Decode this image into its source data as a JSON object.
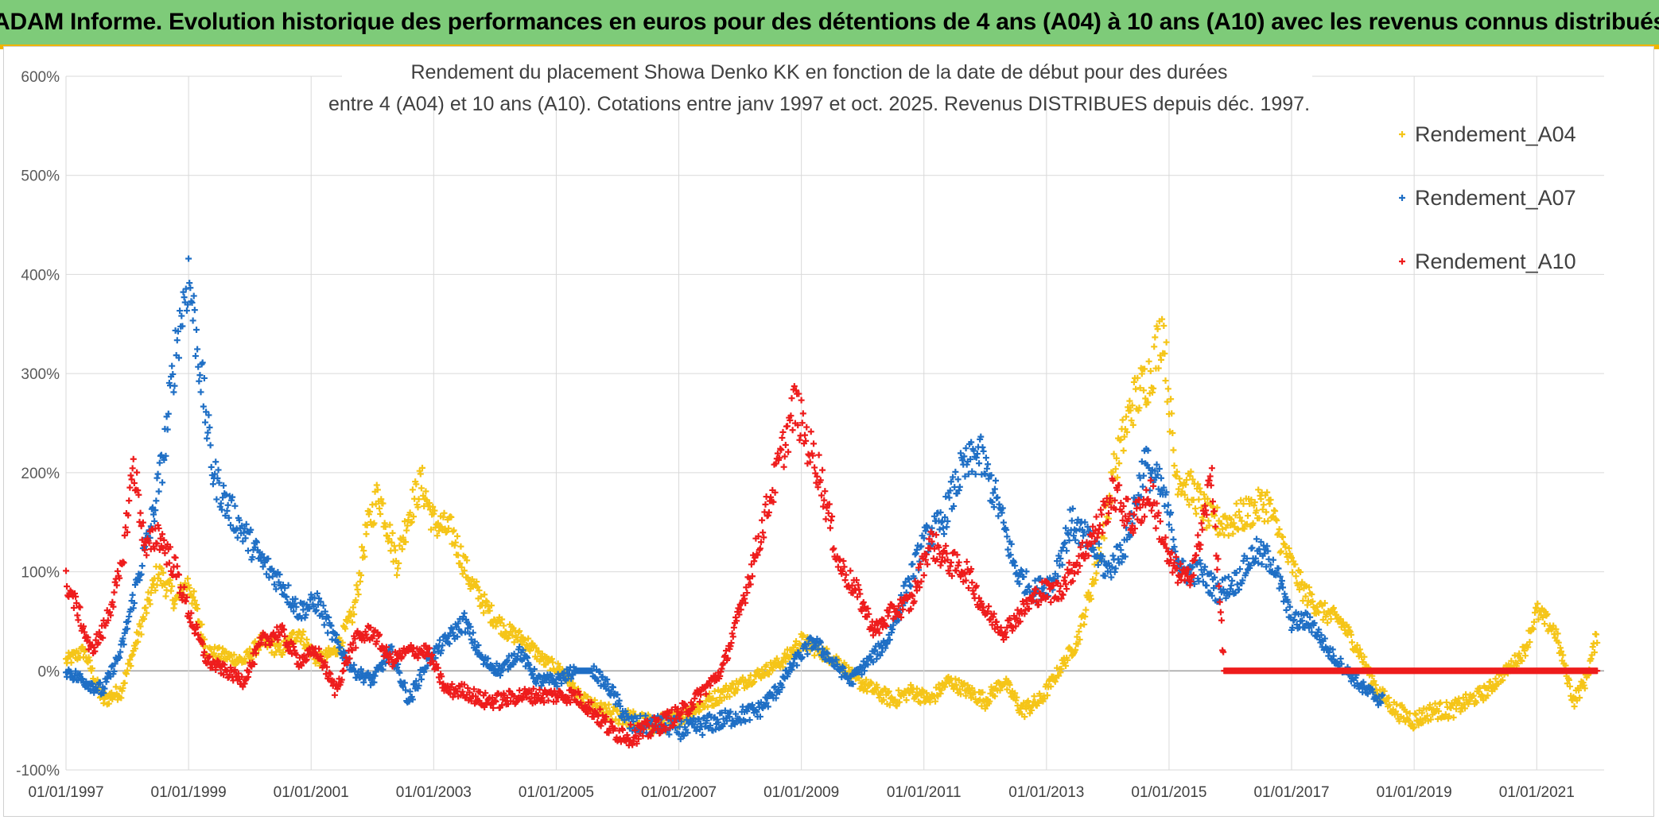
{
  "header": {
    "title": "ADAM Informe. Evolution historique des performances en euros pour des détentions de 4 ans (A04) à 10 ans (A10) avec les revenus connus distribués"
  },
  "chart_data": {
    "type": "scatter",
    "title_line1": "Rendement du placement Showa Denko KK en fonction de la date de début pour des durées",
    "title_line2": "entre 4 (A04) et 10 ans (A10). Cotations entre janv 1997 et oct. 2025. Revenus DISTRIBUES depuis déc. 1997.",
    "xlabel": "",
    "ylabel": "",
    "x_range": [
      1997.0,
      2022.1
    ],
    "ylim": [
      -100,
      600
    ],
    "y_ticks": [
      -100,
      0,
      100,
      200,
      300,
      400,
      500,
      600
    ],
    "y_tick_labels": [
      "-100%",
      "0%",
      "100%",
      "200%",
      "300%",
      "400%",
      "500%",
      "600%"
    ],
    "x_ticks": [
      1997,
      1999,
      2001,
      2003,
      2005,
      2007,
      2009,
      2011,
      2013,
      2015,
      2017,
      2019,
      2021
    ],
    "x_tick_labels": [
      "01/01/1997",
      "01/01/1999",
      "01/01/2001",
      "01/01/2003",
      "01/01/2005",
      "01/01/2007",
      "01/01/2009",
      "01/01/2011",
      "01/01/2013",
      "01/01/2015",
      "01/01/2017",
      "01/01/2019",
      "01/01/2021"
    ],
    "grid": true,
    "legend_position": "top-right",
    "series": [
      {
        "name": "Rendement_A04",
        "color": "#f5c518",
        "x": [
          1997.0,
          1997.3,
          1997.6,
          1997.9,
          1998.2,
          1998.5,
          1998.8,
          1999.0,
          1999.3,
          1999.6,
          1999.9,
          2000.2,
          2000.5,
          2000.8,
          2001.1,
          2001.4,
          2001.7,
          2001.9,
          2002.1,
          2002.4,
          2002.6,
          2002.8,
          2003.0,
          2003.3,
          2003.6,
          2003.9,
          2004.2,
          2004.5,
          2004.8,
          2005.1,
          2005.4,
          2005.7,
          2006.0,
          2006.3,
          2006.6,
          2006.9,
          2007.2,
          2007.5,
          2007.8,
          2008.1,
          2008.4,
          2008.7,
          2009.0,
          2009.3,
          2009.6,
          2009.9,
          2010.2,
          2010.5,
          2010.8,
          2011.1,
          2011.4,
          2011.7,
          2012.0,
          2012.3,
          2012.6,
          2012.9,
          2013.2,
          2013.5,
          2013.8,
          2014.1,
          2014.4,
          2014.7,
          2014.9,
          2015.1,
          2015.4,
          2015.7,
          2016.0,
          2016.3,
          2016.6,
          2016.9,
          2017.2,
          2017.5,
          2017.8,
          2018.1,
          2018.4,
          2018.7,
          2019.0,
          2019.3,
          2019.6,
          2019.9,
          2020.2,
          2020.5,
          2020.8,
          2021.0,
          2021.3,
          2021.6,
          2021.8,
          2022.0
        ],
        "values": [
          10,
          20,
          -30,
          -20,
          40,
          100,
          70,
          90,
          20,
          15,
          10,
          30,
          20,
          40,
          10,
          20,
          60,
          140,
          180,
          110,
          160,
          190,
          150,
          140,
          90,
          60,
          40,
          30,
          10,
          0,
          -30,
          -40,
          -45,
          -50,
          -55,
          -50,
          -40,
          -30,
          -20,
          -10,
          0,
          10,
          30,
          20,
          10,
          -10,
          -20,
          -30,
          -20,
          -30,
          -10,
          -20,
          -30,
          -10,
          -40,
          -30,
          0,
          30,
          100,
          200,
          270,
          300,
          350,
          200,
          180,
          150,
          150,
          160,
          170,
          120,
          80,
          60,
          50,
          20,
          -20,
          -40,
          -50,
          -40,
          -40,
          -30,
          -20,
          0,
          20,
          60,
          40,
          -30,
          -10,
          40
        ]
      },
      {
        "name": "Rendement_A07",
        "color": "#1f6fc5",
        "x": [
          1997.0,
          1997.3,
          1997.6,
          1997.9,
          1998.2,
          1998.4,
          1998.6,
          1998.8,
          1999.0,
          1999.2,
          1999.4,
          1999.6,
          1999.9,
          2000.2,
          2000.5,
          2000.8,
          2001.1,
          2001.4,
          2001.7,
          2002.0,
          2002.3,
          2002.6,
          2002.9,
          2003.2,
          2003.5,
          2003.8,
          2004.1,
          2004.4,
          2004.7,
          2005.0,
          2005.3,
          2005.6,
          2005.9,
          2006.2,
          2006.5,
          2006.8,
          2007.1,
          2007.4,
          2007.7,
          2008.0,
          2008.3,
          2008.6,
          2008.9,
          2009.2,
          2009.5,
          2009.8,
          2010.1,
          2010.4,
          2010.7,
          2011.0,
          2011.3,
          2011.6,
          2011.9,
          2012.2,
          2012.5,
          2012.8,
          2013.1,
          2013.4,
          2013.7,
          2014.0,
          2014.3,
          2014.6,
          2014.9,
          2015.2,
          2015.5,
          2015.8,
          2016.1,
          2016.4,
          2016.7,
          2017.0,
          2017.3,
          2017.6,
          2017.9,
          2018.2,
          2018.5
        ],
        "values": [
          0,
          -10,
          -20,
          20,
          100,
          150,
          220,
          330,
          400,
          300,
          200,
          170,
          140,
          110,
          90,
          60,
          70,
          30,
          0,
          -10,
          20,
          -30,
          10,
          30,
          50,
          10,
          0,
          20,
          -10,
          -10,
          0,
          0,
          -20,
          -55,
          -55,
          -55,
          -60,
          -55,
          -50,
          -45,
          -40,
          -20,
          10,
          30,
          10,
          -10,
          10,
          30,
          80,
          130,
          150,
          200,
          220,
          170,
          100,
          80,
          90,
          150,
          130,
          100,
          130,
          210,
          180,
          100,
          100,
          80,
          90,
          120,
          110,
          50,
          50,
          20,
          0,
          -20,
          -30
        ]
      },
      {
        "name": "Rendement_A10",
        "color": "#ee1c1c",
        "x": [
          1997.0,
          1997.2,
          1997.4,
          1997.6,
          1997.9,
          1998.1,
          1998.3,
          1998.5,
          1998.8,
          1999.0,
          1999.3,
          1999.6,
          1999.9,
          2000.2,
          2000.5,
          2000.8,
          2001.1,
          2001.4,
          2001.7,
          2002.0,
          2002.3,
          2002.6,
          2002.9,
          2003.2,
          2003.5,
          2003.8,
          2004.1,
          2004.4,
          2004.7,
          2005.0,
          2005.3,
          2005.6,
          2005.9,
          2006.2,
          2006.5,
          2006.8,
          2007.1,
          2007.4,
          2007.7,
          2008.0,
          2008.3,
          2008.6,
          2008.9,
          2009.1,
          2009.3,
          2009.6,
          2009.9,
          2010.2,
          2010.5,
          2010.8,
          2011.1,
          2011.4,
          2011.7,
          2012.0,
          2012.3,
          2012.6,
          2012.9,
          2013.2,
          2013.5,
          2013.8,
          2014.1,
          2014.4,
          2014.7,
          2015.0,
          2015.3,
          2015.5,
          2015.7,
          2015.9,
          2016.2,
          2016.5,
          2016.8,
          2017.1,
          2017.4,
          2017.7,
          2018.0,
          2018.3,
          2018.6,
          2018.9,
          2019.2,
          2019.5,
          2019.8,
          2020.1,
          2020.4,
          2020.7,
          2021.0,
          2021.3,
          2021.6,
          2021.9,
          2022.0
        ],
        "values": [
          90,
          60,
          20,
          40,
          100,
          210,
          120,
          140,
          100,
          60,
          10,
          0,
          -10,
          30,
          40,
          10,
          20,
          -20,
          30,
          40,
          10,
          20,
          20,
          -20,
          -20,
          -30,
          -30,
          -25,
          -25,
          -25,
          -25,
          -40,
          -60,
          -65,
          -60,
          -50,
          -40,
          -20,
          0,
          60,
          130,
          200,
          270,
          230,
          200,
          110,
          80,
          40,
          60,
          70,
          130,
          110,
          100,
          60,
          40,
          60,
          80,
          80,
          110,
          140,
          180,
          150,
          180,
          110,
          90,
          130,
          200,
          0,
          0,
          0,
          0,
          0,
          0,
          0,
          0,
          0,
          0,
          0,
          0,
          0,
          0,
          0,
          0,
          0,
          0,
          0,
          0,
          0,
          0
        ]
      }
    ]
  }
}
